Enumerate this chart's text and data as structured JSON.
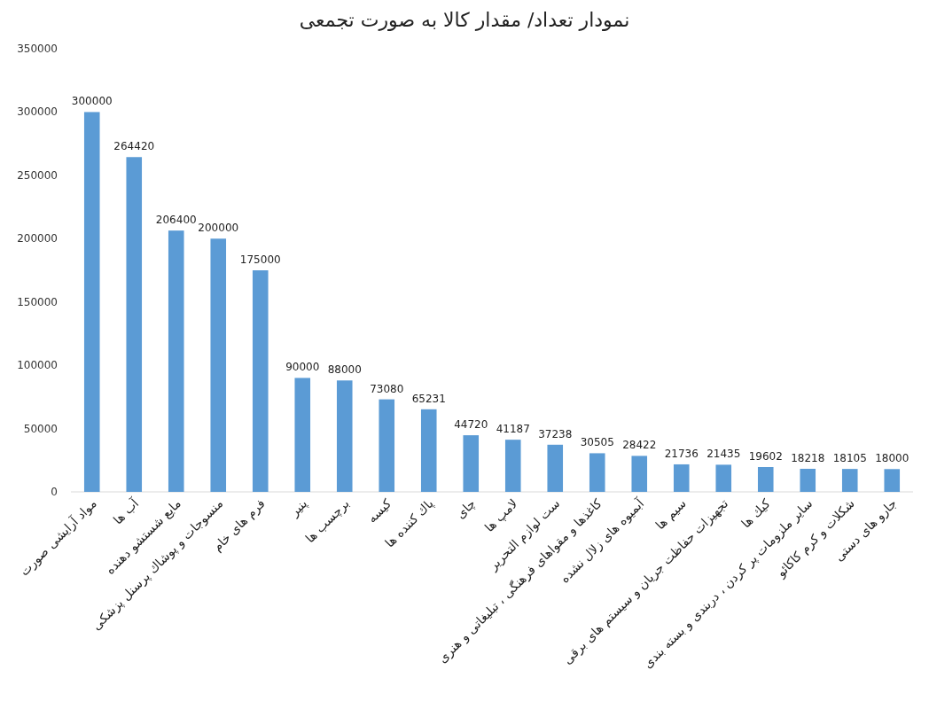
{
  "chart_data": {
    "type": "bar",
    "title": "نمودار تعداد/ مقدار کالا به صورت تجمعی",
    "categories": [
      "مواد آرایشی صورت",
      "آب ها",
      "مایع شستشو دهنده",
      "منسوجات و پوشاك پرسنل پزشکی",
      "فرم های خام",
      "پنیر",
      "برچسب ها",
      "کیسه",
      "پاك کننده ها",
      "چای",
      "لامپ ها",
      "ست لوازم التحریر",
      "کاغذها و مقواهای فرهنگی ، تبلیغاتی و هنری",
      "آبمیوه های زلال نشده",
      "سیم ها",
      "تجهیزات حفاظت جریان و سیستم های برقی",
      "کیك ها",
      "سایر ملزومات پر کردن ، دربندی و بسته بندی",
      "شکلات و کرم کاکائو",
      "جارو های دستی"
    ],
    "values": [
      300000,
      264420,
      206400,
      200000,
      175000,
      90000,
      88000,
      73080,
      65231,
      44720,
      41187,
      37238,
      30505,
      28422,
      21736,
      21435,
      19602,
      18218,
      18105,
      18000
    ],
    "color": "#5b9bd5",
    "ylim": [
      0,
      350000
    ],
    "yticks": [
      0,
      50000,
      100000,
      150000,
      200000,
      250000,
      300000,
      350000
    ],
    "grid": false,
    "data_labels": true
  }
}
